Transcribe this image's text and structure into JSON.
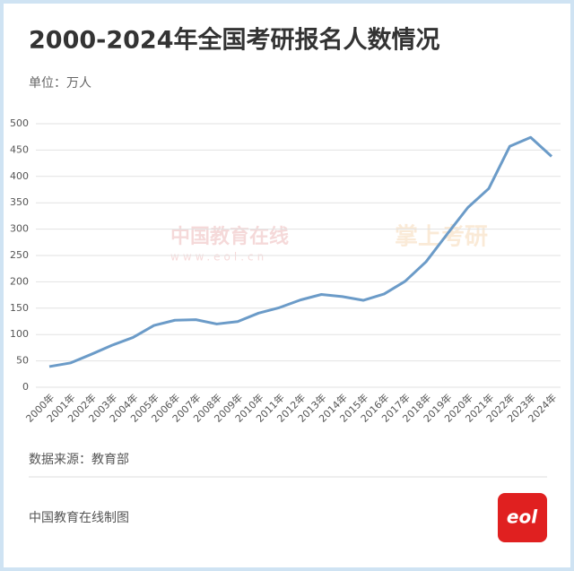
{
  "chart_data": {
    "type": "line",
    "title": "2000-2024年全国考研报名人数情况",
    "subtitle": "单位：万人",
    "categories": [
      "2000年",
      "2001年",
      "2002年",
      "2003年",
      "2004年",
      "2005年",
      "2006年",
      "2007年",
      "2008年",
      "2009年",
      "2010年",
      "2011年",
      "2012年",
      "2013年",
      "2014年",
      "2015年",
      "2016年",
      "2017年",
      "2018年",
      "2019年",
      "2020年",
      "2021年",
      "2022年",
      "2023年",
      "2024年"
    ],
    "values": [
      39.2,
      46,
      62.4,
      79.7,
      94.5,
      117.2,
      127.1,
      128.2,
      120,
      124.6,
      140.6,
      151.1,
      165.6,
      176,
      172,
      164.9,
      177,
      201,
      238,
      290,
      341,
      377,
      457,
      474,
      438
    ],
    "color": "#6b9bc8",
    "ylim": [
      0,
      500
    ],
    "yticks": [
      0,
      50,
      100,
      150,
      200,
      250,
      300,
      350,
      400,
      450,
      500
    ],
    "grid": true,
    "watermarks": [
      "中国教育在线",
      "www.eol.cn",
      "掌上考研"
    ],
    "source": "数据来源：教育部",
    "credit": "中国教育在线制图",
    "logo_text": "eol"
  }
}
